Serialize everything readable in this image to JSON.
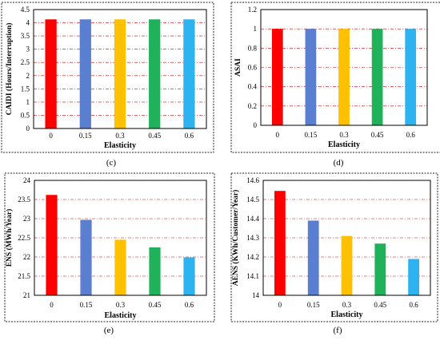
{
  "panels": [
    {
      "id": "c",
      "caption": "(c)",
      "chart_data": {
        "type": "bar",
        "categories": [
          "0",
          "0.15",
          "0.3",
          "0.45",
          "0.6"
        ],
        "values": [
          4.13,
          4.13,
          4.13,
          4.13,
          4.13
        ],
        "xlabel": "Elasticity",
        "ylabel": "CAIDI (Hours/Interruption)",
        "ylim": [
          0,
          4.5
        ],
        "yticks": [
          0,
          0.5,
          1,
          1.5,
          2,
          2.5,
          3,
          3.5,
          4,
          4.5
        ],
        "ytick_labels": [
          "0",
          "0.5",
          "1",
          "1.5",
          "2",
          "2.5",
          "3",
          "3.5",
          "4",
          "4.5"
        ],
        "grid": true,
        "bar_colors": [
          "#ff0000",
          "#5b7fd0",
          "#ffc000",
          "#1fb25a",
          "#2cb3f0"
        ]
      }
    },
    {
      "id": "d",
      "caption": "(d)",
      "chart_data": {
        "type": "bar",
        "categories": [
          "0",
          "0.15",
          "0.3",
          "0.45",
          "0.6"
        ],
        "values": [
          1.0,
          1.0,
          1.0,
          1.0,
          1.0
        ],
        "xlabel": "Elasticity",
        "ylabel": "ASAI",
        "ylim": [
          0,
          1.2
        ],
        "yticks": [
          0,
          0.2,
          0.4,
          0.6,
          0.8,
          1,
          1.2
        ],
        "ytick_labels": [
          "0",
          "0.2",
          "0.4",
          "0.6",
          "0.8",
          "1",
          "1.2"
        ],
        "grid": true,
        "bar_colors": [
          "#ff0000",
          "#5b7fd0",
          "#ffc000",
          "#1fb25a",
          "#2cb3f0"
        ]
      }
    },
    {
      "id": "e",
      "caption": "(e)",
      "chart_data": {
        "type": "bar",
        "categories": [
          "0",
          "0.15",
          "0.3",
          "0.45",
          "0.6"
        ],
        "values": [
          23.62,
          22.97,
          22.45,
          22.25,
          21.99
        ],
        "xlabel": "Elasticity",
        "ylabel": "ENS (MWh/Year)",
        "ylim": [
          21,
          24
        ],
        "yticks": [
          21,
          21.5,
          22,
          22.5,
          23,
          23.5,
          24
        ],
        "ytick_labels": [
          "21",
          "21.5",
          "22",
          "22.5",
          "23",
          "23.5",
          "24"
        ],
        "grid": true,
        "bar_colors": [
          "#ff0000",
          "#5b7fd0",
          "#ffc000",
          "#1fb25a",
          "#2cb3f0"
        ]
      }
    },
    {
      "id": "f",
      "caption": "(f)",
      "chart_data": {
        "type": "bar",
        "categories": [
          "0",
          "0.15",
          "0.3",
          "0.45",
          "0.6"
        ],
        "values": [
          14.545,
          14.39,
          14.31,
          14.27,
          14.19
        ],
        "xlabel": "Elasticity",
        "ylabel": "AENS (KWh/Customer/Year)",
        "ylim": [
          14,
          14.6
        ],
        "yticks": [
          14,
          14.1,
          14.2,
          14.3,
          14.4,
          14.5,
          14.6
        ],
        "ytick_labels": [
          "14",
          "14.1",
          "14.2",
          "14.3",
          "14.4",
          "14.5",
          "14.6"
        ],
        "grid": true,
        "bar_colors": [
          "#ff0000",
          "#5b7fd0",
          "#ffc000",
          "#1fb25a",
          "#2cb3f0"
        ]
      }
    }
  ]
}
